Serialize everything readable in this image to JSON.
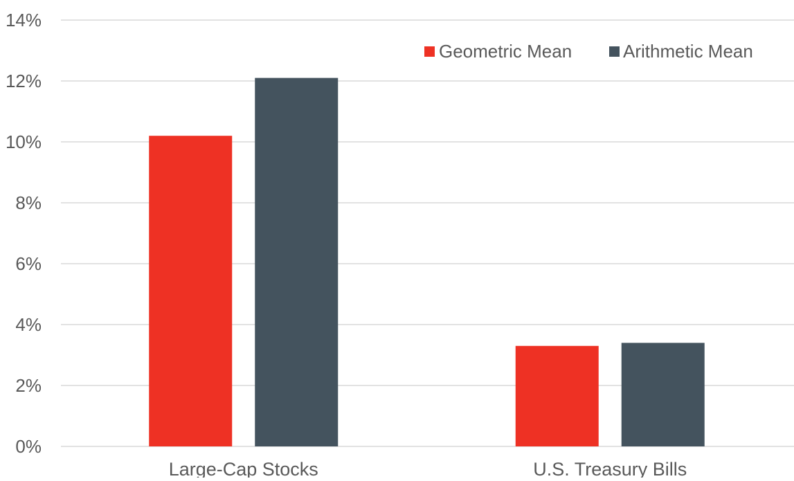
{
  "chart_data": {
    "type": "bar",
    "title": "",
    "xlabel": "",
    "ylabel": "",
    "categories": [
      "Large-Cap Stocks",
      "U.S. Treasury Bills"
    ],
    "series": [
      {
        "name": "Geometric Mean",
        "values": [
          10.2,
          3.3
        ],
        "color": "#ee3124"
      },
      {
        "name": "Arithmetic Mean",
        "values": [
          12.1,
          3.4
        ],
        "color": "#44535e"
      }
    ],
    "ylim": [
      0,
      14
    ],
    "yticks": [
      0,
      2,
      4,
      6,
      8,
      10,
      12,
      14
    ],
    "ytick_labels": [
      "0%",
      "2%",
      "4%",
      "6%",
      "8%",
      "10%",
      "12%",
      "14%"
    ],
    "grid": true,
    "legend_position": "top-right",
    "colors": {
      "gridline": "#d9d9d9",
      "text": "#595959"
    }
  }
}
